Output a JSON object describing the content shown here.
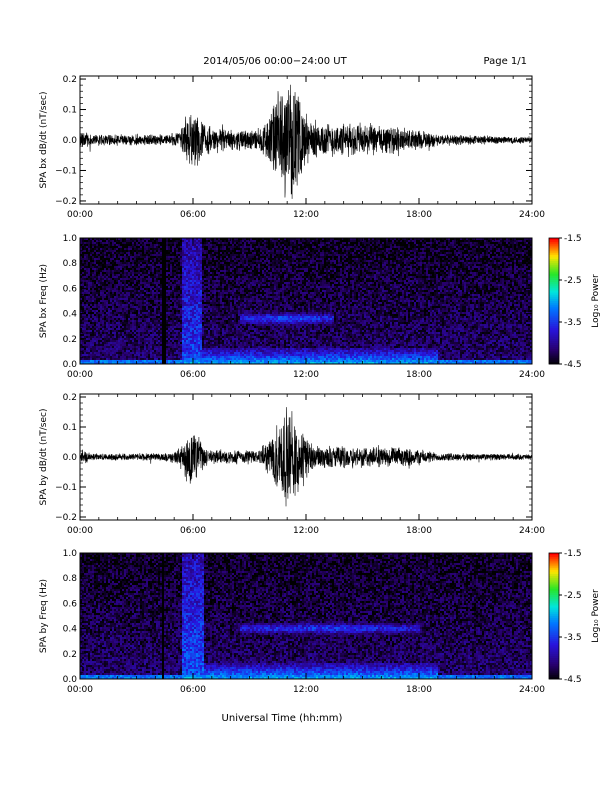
{
  "header": {
    "title": "2014/05/06  00:00−24:00 UT",
    "page": "Page 1/1"
  },
  "footer": {
    "xlabel": "Universal Time (hh:mm)"
  },
  "chart_data": [
    {
      "type": "line",
      "ylabel": "SPA bx dB/dt (nT/sec)",
      "xlim_hours": [
        0,
        24
      ],
      "x_ticks": [
        "00:00",
        "06:00",
        "12:00",
        "18:00",
        "24:00"
      ],
      "ylim": [
        -0.21,
        0.21
      ],
      "y_ticks": [
        0.2,
        0.1,
        0.0,
        -0.1,
        -0.2
      ],
      "y_tick_labels": [
        "0.2",
        "0.1",
        "0.0",
        "−0.1",
        "−0.2"
      ],
      "envelope": [
        {
          "t": 0.0,
          "amp": 0.022
        },
        {
          "t": 0.3,
          "amp": 0.04
        },
        {
          "t": 0.6,
          "amp": 0.02
        },
        {
          "t": 4.5,
          "amp": 0.02
        },
        {
          "t": 5.3,
          "amp": 0.03
        },
        {
          "t": 5.6,
          "amp": 0.095
        },
        {
          "t": 6.2,
          "amp": 0.09
        },
        {
          "t": 6.8,
          "amp": 0.05
        },
        {
          "t": 8.0,
          "amp": 0.035
        },
        {
          "t": 9.5,
          "amp": 0.04
        },
        {
          "t": 10.0,
          "amp": 0.08
        },
        {
          "t": 10.4,
          "amp": 0.16
        },
        {
          "t": 10.9,
          "amp": 0.21
        },
        {
          "t": 11.4,
          "amp": 0.2
        },
        {
          "t": 11.8,
          "amp": 0.12
        },
        {
          "t": 12.3,
          "amp": 0.07
        },
        {
          "t": 13.5,
          "amp": 0.06
        },
        {
          "t": 15.0,
          "amp": 0.06
        },
        {
          "t": 16.2,
          "amp": 0.05
        },
        {
          "t": 17.8,
          "amp": 0.04
        },
        {
          "t": 19.0,
          "amp": 0.02
        },
        {
          "t": 24.0,
          "amp": 0.012
        }
      ]
    },
    {
      "type": "heatmap",
      "ylabel": "SPA bx Freq (Hz)",
      "xlim_hours": [
        0,
        24
      ],
      "x_ticks": [
        "00:00",
        "06:00",
        "12:00",
        "18:00",
        "24:00"
      ],
      "ylim": [
        0,
        1.0
      ],
      "y_ticks": [
        "0.0",
        "0.2",
        "0.4",
        "0.6",
        "0.8",
        "1.0"
      ],
      "colorbar": {
        "label": "Log₁₀ Power",
        "range": [
          -4.5,
          -1.5
        ],
        "ticks": [
          "-1.5",
          "-2.5",
          "-3.5",
          "-4.5"
        ]
      },
      "features": [
        {
          "kind": "gap",
          "t_start": 4.4,
          "t_end": 4.55
        },
        {
          "kind": "broadband",
          "t_start": 5.4,
          "t_end": 6.5,
          "level": -3.4
        },
        {
          "kind": "band",
          "t_start": 8.5,
          "t_end": 13.5,
          "f": 0.36,
          "level": -3.4
        },
        {
          "kind": "low_freq_enhancement",
          "t_start": 5.5,
          "t_end": 19.0,
          "level": -3.0
        }
      ]
    },
    {
      "type": "line",
      "ylabel": "SPA by dB/dt (nT/sec)",
      "xlim_hours": [
        0,
        24
      ],
      "x_ticks": [
        "00:00",
        "06:00",
        "12:00",
        "18:00",
        "24:00"
      ],
      "ylim": [
        -0.21,
        0.21
      ],
      "y_ticks": [
        0.2,
        0.1,
        0.0,
        -0.1,
        -0.2
      ],
      "y_tick_labels": [
        "0.2",
        "0.1",
        "0.0",
        "−0.1",
        "−0.2"
      ],
      "envelope": [
        {
          "t": 0.0,
          "amp": 0.015
        },
        {
          "t": 0.3,
          "amp": 0.03
        },
        {
          "t": 0.6,
          "amp": 0.012
        },
        {
          "t": 4.5,
          "amp": 0.015
        },
        {
          "t": 5.3,
          "amp": 0.03
        },
        {
          "t": 5.6,
          "amp": 0.1
        },
        {
          "t": 6.2,
          "amp": 0.08
        },
        {
          "t": 6.8,
          "amp": 0.03
        },
        {
          "t": 9.5,
          "amp": 0.025
        },
        {
          "t": 10.2,
          "amp": 0.08
        },
        {
          "t": 10.8,
          "amp": 0.18
        },
        {
          "t": 11.3,
          "amp": 0.17
        },
        {
          "t": 11.8,
          "amp": 0.1
        },
        {
          "t": 12.5,
          "amp": 0.04
        },
        {
          "t": 15.0,
          "amp": 0.04
        },
        {
          "t": 18.0,
          "amp": 0.03
        },
        {
          "t": 19.0,
          "amp": 0.015
        },
        {
          "t": 24.0,
          "amp": 0.01
        }
      ]
    },
    {
      "type": "heatmap",
      "ylabel": "SPA by Freq (Hz)",
      "xlim_hours": [
        0,
        24
      ],
      "x_ticks": [
        "00:00",
        "06:00",
        "12:00",
        "18:00",
        "24:00"
      ],
      "ylim": [
        0,
        1.0
      ],
      "y_ticks": [
        "0.0",
        "0.2",
        "0.4",
        "0.6",
        "0.8",
        "1.0"
      ],
      "colorbar": {
        "label": "Log₁₀ Power",
        "range": [
          -4.5,
          -1.5
        ],
        "ticks": [
          "-1.5",
          "-2.5",
          "-3.5",
          "-4.5"
        ]
      },
      "features": [
        {
          "kind": "gap",
          "t_start": 4.4,
          "t_end": 4.5
        },
        {
          "kind": "broadband",
          "t_start": 5.4,
          "t_end": 6.6,
          "level": -3.3
        },
        {
          "kind": "band",
          "t_start": 8.5,
          "t_end": 18.0,
          "f": 0.4,
          "level": -3.5
        },
        {
          "kind": "low_freq_enhancement",
          "t_start": 5.5,
          "t_end": 19.0,
          "level": -3.0
        }
      ]
    }
  ]
}
